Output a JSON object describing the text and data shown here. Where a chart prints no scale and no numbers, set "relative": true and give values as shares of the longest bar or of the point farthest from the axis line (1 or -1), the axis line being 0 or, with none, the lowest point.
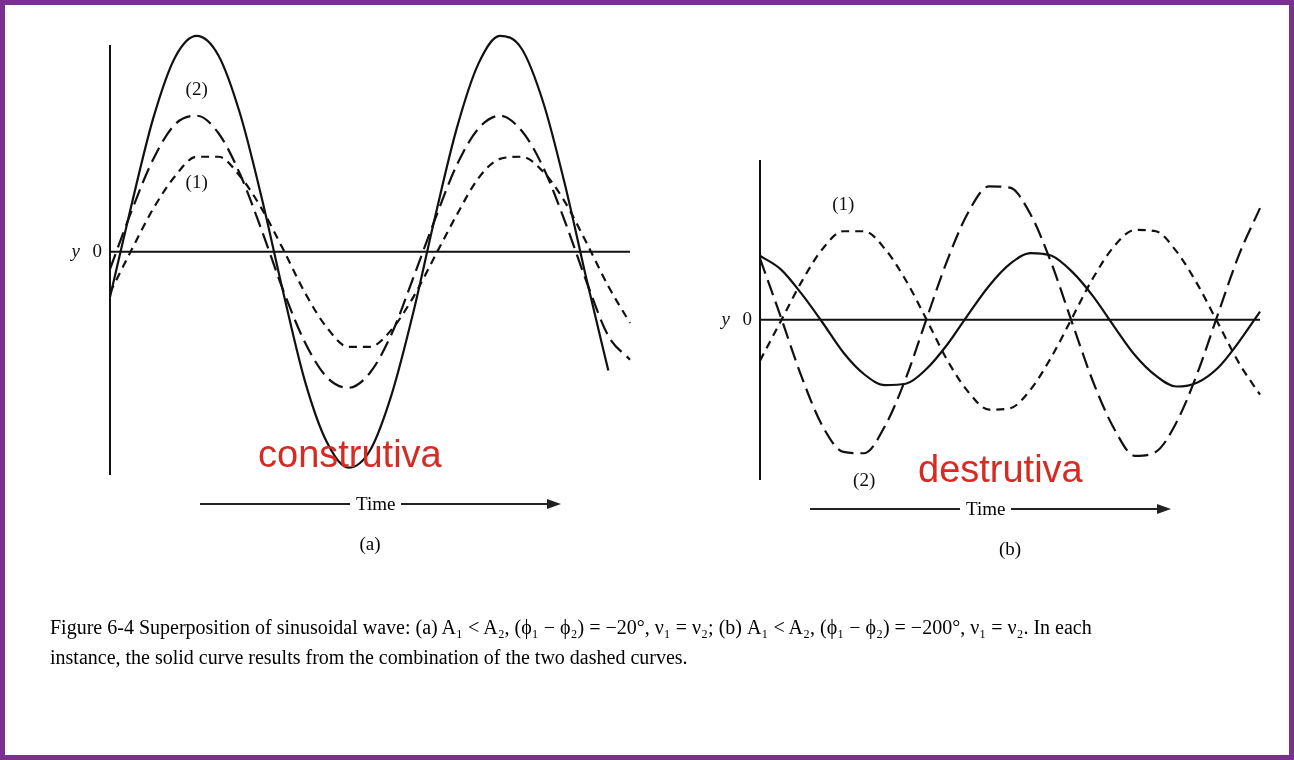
{
  "chart_data": [
    {
      "type": "line",
      "relative": true,
      "title": "(a)",
      "xlabel": "Time",
      "ylabel": "y",
      "annotations": [
        "0",
        "construtiva"
      ],
      "categories": [
        null,
        null,
        null,
        null,
        null,
        null,
        null,
        null,
        null,
        null,
        null,
        null,
        null,
        null,
        null,
        null,
        null,
        null,
        null,
        null,
        null,
        null,
        null,
        null,
        null
      ],
      "series": [
        {
          "color": "#111111",
          "line_style": "solid",
          "values": [
            -0.21,
            0.22,
            0.62,
            0.9,
            1,
            0.91,
            0.64,
            0.25,
            -0.19,
            -0.6,
            -0.88,
            -1,
            -0.92,
            -0.66,
            -0.28,
            0.16,
            0.57,
            0.87,
            1,
            0.94,
            0.69,
            0.31,
            -0.13,
            -0.55,
            null
          ]
        },
        {
          "name": "(2)",
          "color": "#111111",
          "line_style": "dashed",
          "values": [
            -0.08,
            0.19,
            0.43,
            0.59,
            0.63,
            0.55,
            0.36,
            0.1,
            -0.18,
            -0.42,
            -0.58,
            -0.63,
            -0.56,
            -0.38,
            -0.12,
            0.15,
            0.4,
            0.57,
            0.63,
            0.56,
            0.39,
            0.14,
            -0.14,
            -0.39,
            -0.5
          ]
        },
        {
          "name": "(1)",
          "color": "#111111",
          "line_style": "dashed",
          "values": [
            -0.19,
            0.01,
            0.2,
            0.35,
            0.44,
            0.44,
            0.35,
            0.2,
            0.01,
            -0.19,
            -0.35,
            -0.44,
            -0.44,
            -0.36,
            -0.21,
            -0.02,
            0.17,
            0.34,
            0.43,
            0.44,
            0.37,
            0.23,
            0.04,
            -0.16,
            -0.33
          ]
        }
      ]
    },
    {
      "type": "line",
      "relative": true,
      "title": "(b)",
      "xlabel": "Time",
      "ylabel": "y",
      "annotations": [
        "0",
        "destrutiva",
        "Figure 6-4  Superposition of sinusoidal wave: (a) A₁ < A₂, (ϕ₁ − ϕ₂) = −20°, ν₁ = ν₂; (b) A₁ < A₂, (ϕ₁ − ϕ₂) = −200°, ν₁ = ν₂. In each instance, the solid curve results from the combination of the two dashed curves."
      ],
      "categories": [
        null,
        null,
        null,
        null,
        null,
        null,
        null,
        null,
        null,
        null,
        null,
        null,
        null,
        null,
        null,
        null,
        null,
        null,
        null,
        null,
        null,
        null,
        null,
        null,
        null
      ],
      "series": [
        {
          "color": "#111111",
          "line_style": "solid",
          "values": [
            0.47,
            0.37,
            0.19,
            -0.02,
            -0.24,
            -0.4,
            -0.48,
            -0.47,
            -0.36,
            -0.18,
            0.04,
            0.25,
            0.41,
            0.49,
            0.47,
            0.35,
            0.17,
            -0.05,
            -0.26,
            -0.41,
            -0.49,
            -0.46,
            -0.35,
            -0.16,
            0.06
          ]
        },
        {
          "name": "(2)",
          "color": "#111111",
          "line_style": "dashed",
          "values": [
            0.45,
            0.02,
            -0.42,
            -0.78,
            -0.97,
            -0.98,
            -0.78,
            -0.43,
            0.01,
            0.44,
            0.79,
            0.98,
            0.97,
            0.77,
            0.41,
            -0.03,
            -0.46,
            -0.8,
            -1,
            -0.97,
            -0.75,
            -0.39,
            0.05,
            0.48,
            0.82
          ]
        },
        {
          "name": "(1)",
          "color": "#111111",
          "line_style": "dashed",
          "values": [
            -0.3,
            -0.01,
            0.28,
            0.52,
            0.65,
            0.65,
            0.52,
            0.29,
            0,
            -0.3,
            -0.53,
            -0.66,
            -0.65,
            -0.51,
            -0.27,
            0.02,
            0.31,
            0.54,
            0.66,
            0.65,
            0.5,
            0.26,
            -0.03,
            -0.32,
            -0.55
          ]
        }
      ]
    }
  ]
}
